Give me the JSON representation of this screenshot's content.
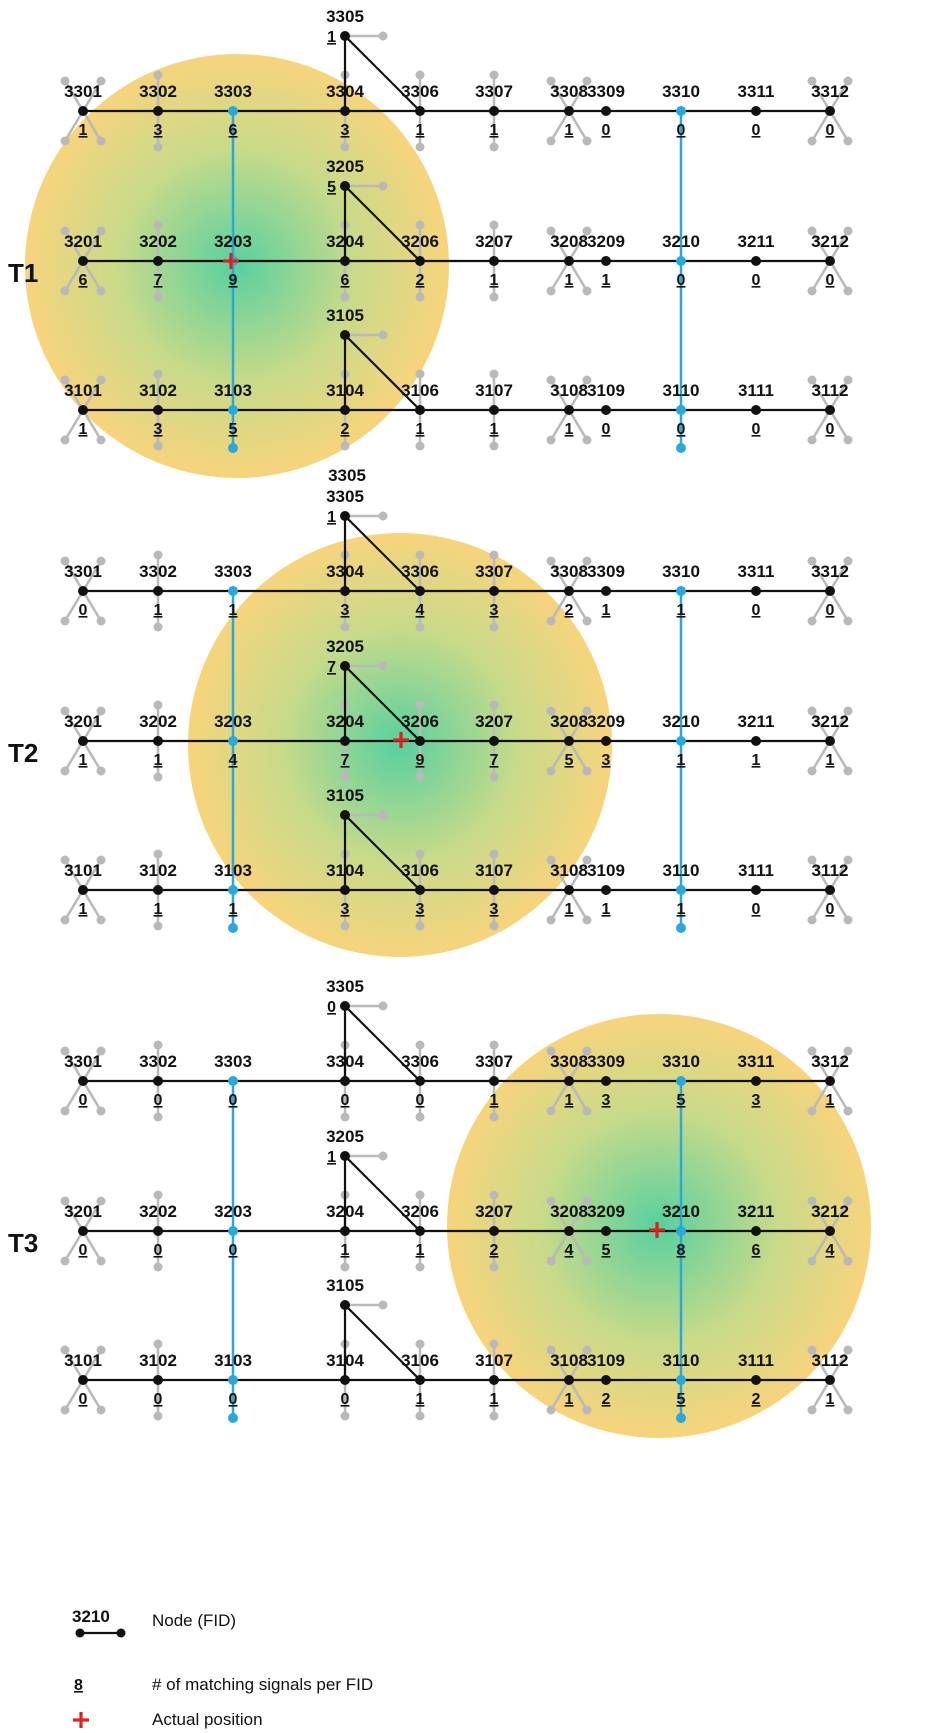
{
  "colors": {
    "road": "#111111",
    "vertical_road": "#29a8dc",
    "stub": "#b9b9b9",
    "cross": "#e0201c",
    "heat_center": "#58d0a0",
    "heat_mid": "#c8da8a",
    "heat_edge": "#f7d47c"
  },
  "legend": {
    "node_example": "3210",
    "node_text": "Node  (FID)",
    "count_example": "8",
    "count_text": "# of matching signals per FID",
    "cross_text": "Actual position"
  },
  "panels": [
    {
      "title": "T1",
      "branch_label_3305": "3305",
      "counts": {
        "3301": "1",
        "3302": "3",
        "3303": "6",
        "3304": "3",
        "3306": "1",
        "3307": "1",
        "3308": "1",
        "3309": "0",
        "3310": "0",
        "3311": "0",
        "3312": "0",
        "3201": "6",
        "3202": "7",
        "3203": "9",
        "3204": "6",
        "3206": "2",
        "3207": "1",
        "3208": "1",
        "3209": "1",
        "3210": "0",
        "3211": "0",
        "3212": "0",
        "3101": "1",
        "3102": "3",
        "3103": "5",
        "3104": "2",
        "3106": "1",
        "3107": "1",
        "3108": "1",
        "3109": "0",
        "3110": "0",
        "3111": "0",
        "3112": "0",
        "3305": "1",
        "3205": "5",
        "3105": ""
      }
    },
    {
      "title": "T2",
      "branch_label_3305": "3305",
      "counts": {
        "3301": "0",
        "3302": "1",
        "3303": "1",
        "3304": "3",
        "3306": "4",
        "3307": "3",
        "3308": "2",
        "3309": "1",
        "3310": "1",
        "3311": "0",
        "3312": "0",
        "3201": "1",
        "3202": "1",
        "3203": "4",
        "3204": "7",
        "3206": "9",
        "3207": "7",
        "3208": "5",
        "3209": "3",
        "3210": "1",
        "3211": "1",
        "3212": "1",
        "3101": "1",
        "3102": "1",
        "3103": "1",
        "3104": "3",
        "3106": "3",
        "3107": "3",
        "3108": "1",
        "3109": "1",
        "3110": "1",
        "3111": "0",
        "3112": "0",
        "3305": "1",
        "3205": "7",
        "3105": ""
      }
    },
    {
      "title": "T3",
      "branch_label_3305": "3305",
      "counts": {
        "3301": "0",
        "3302": "0",
        "3303": "0",
        "3304": "0",
        "3306": "0",
        "3307": "1",
        "3308": "1",
        "3309": "3",
        "3310": "5",
        "3311": "3",
        "3312": "1",
        "3201": "0",
        "3202": "0",
        "3203": "0",
        "3204": "1",
        "3206": "1",
        "3207": "2",
        "3208": "4",
        "3209": "5",
        "3210": "8",
        "3211": "6",
        "3212": "4",
        "3101": "0",
        "3102": "0",
        "3103": "0",
        "3104": "0",
        "3106": "1",
        "3107": "1",
        "3108": "1",
        "3109": "2",
        "3110": "5",
        "3111": "2",
        "3112": "1",
        "3305": "0",
        "3205": "1",
        "3105": ""
      }
    }
  ],
  "node_ids": {
    "row3": [
      "3301",
      "3302",
      "3303",
      "3304",
      "3306",
      "3307",
      "3308",
      "3309",
      "3310",
      "3311",
      "3312"
    ],
    "row2": [
      "3201",
      "3202",
      "3203",
      "3204",
      "3206",
      "3207",
      "3208",
      "3209",
      "3210",
      "3211",
      "3212"
    ],
    "row1": [
      "3101",
      "3102",
      "3103",
      "3104",
      "3106",
      "3107",
      "3108",
      "3109",
      "3110",
      "3111",
      "3112"
    ],
    "branches": [
      "3305",
      "3205",
      "3105"
    ]
  }
}
